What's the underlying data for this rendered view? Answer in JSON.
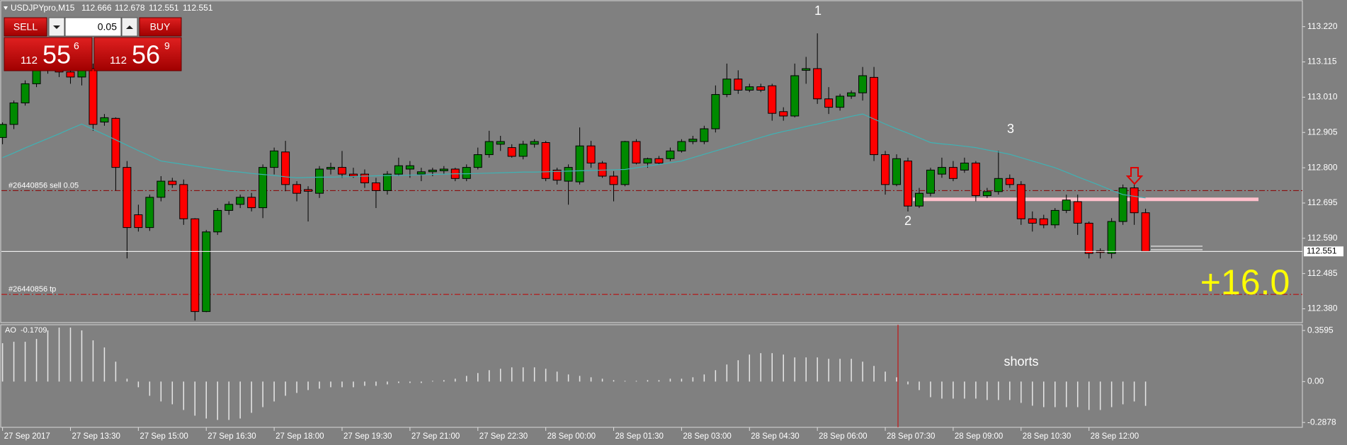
{
  "chart_data": {
    "type": "candlestick",
    "symbol": "USDJPYpro,M15",
    "categories": [
      "27 Sep 2017",
      null,
      null,
      null,
      null,
      null,
      "27 Sep 13:30",
      null,
      null,
      null,
      null,
      null,
      "27 Sep 15:00",
      null,
      null,
      null,
      null,
      null,
      "27 Sep 16:30",
      null,
      null,
      null,
      null,
      null,
      "27 Sep 18:00",
      null,
      null,
      null,
      null,
      null,
      "27 Sep 19:30",
      null,
      null,
      null,
      null,
      null,
      "27 Sep 21:00",
      null,
      null,
      null,
      null,
      null,
      "27 Sep 22:30",
      null,
      null,
      null,
      null,
      null,
      "28 Sep 00:00",
      null,
      null,
      null,
      null,
      null,
      "28 Sep 01:30",
      null,
      null,
      null,
      null,
      null,
      "28 Sep 03:00",
      null,
      null,
      null,
      null,
      null,
      "28 Sep 04:30",
      null,
      null,
      null,
      null,
      null,
      "28 Sep 06:00",
      null,
      null,
      null,
      null,
      null,
      "28 Sep 07:30",
      null,
      null,
      null,
      null,
      null,
      "28 Sep 09:00",
      null,
      null,
      null,
      null,
      null,
      "28 Sep 10:30",
      null,
      null,
      null,
      null,
      null,
      "28 Sep 12:00",
      null,
      null,
      null,
      null,
      null
    ],
    "open": [
      112.89,
      112.929,
      112.993,
      113.05,
      113.095,
      113.12,
      113.085,
      113.07,
      113.095,
      112.936,
      112.947,
      112.801,
      112.66,
      112.622,
      112.712,
      112.76,
      112.75,
      112.648,
      112.372,
      112.609,
      112.673,
      112.691,
      112.712,
      112.681,
      112.801,
      112.847,
      112.75,
      112.735,
      112.724,
      112.796,
      112.801,
      112.781,
      112.781,
      112.755,
      112.732,
      112.781,
      112.796,
      112.781,
      112.788,
      112.791,
      112.796,
      112.768,
      112.801,
      112.839,
      112.87,
      112.86,
      112.834,
      112.87,
      112.875,
      112.793,
      112.76,
      112.758,
      112.865,
      112.814,
      112.775,
      112.75,
      112.878,
      112.814,
      112.827,
      112.827,
      112.85,
      112.878,
      112.878,
      112.916,
      113.018,
      113.064,
      113.031,
      113.041,
      113.044,
      112.967,
      112.954,
      113.09,
      113.095,
      113.005,
      112.98,
      113.013,
      113.023,
      113.069,
      112.839,
      112.75,
      112.82,
      112.686,
      112.724,
      112.781,
      112.801,
      112.793,
      112.814,
      112.717,
      112.729,
      112.768,
      112.75,
      112.648,
      112.648,
      112.63,
      112.673,
      112.699,
      112.635,
      112.553,
      112.545,
      112.64,
      112.74,
      112.666
    ],
    "high": [
      112.935,
      113.0,
      113.06,
      113.11,
      113.15,
      113.14,
      113.11,
      113.1,
      113.11,
      112.96,
      112.95,
      112.82,
      112.69,
      112.72,
      112.775,
      112.77,
      112.765,
      112.65,
      112.615,
      112.68,
      112.7,
      112.72,
      112.725,
      112.81,
      112.86,
      112.88,
      112.76,
      112.745,
      112.805,
      112.815,
      112.85,
      112.8,
      112.795,
      112.77,
      112.79,
      112.83,
      112.82,
      112.8,
      112.8,
      112.805,
      112.8,
      112.81,
      112.86,
      112.91,
      112.895,
      112.87,
      112.88,
      112.885,
      112.88,
      112.8,
      112.81,
      112.92,
      112.88,
      112.82,
      112.79,
      112.88,
      112.885,
      112.83,
      112.835,
      112.86,
      112.885,
      112.895,
      112.925,
      113.045,
      113.11,
      113.09,
      113.05,
      113.05,
      113.05,
      112.98,
      113.11,
      113.13,
      113.2,
      113.04,
      113.02,
      113.03,
      113.1,
      113.1,
      112.85,
      112.84,
      112.83,
      112.74,
      112.8,
      112.83,
      112.82,
      112.83,
      112.82,
      112.74,
      112.85,
      112.78,
      112.76,
      112.67,
      112.66,
      112.68,
      112.72,
      112.72,
      112.64,
      112.56,
      112.65,
      112.75,
      112.75,
      112.678
    ],
    "low": [
      112.87,
      112.915,
      112.985,
      113.04,
      113.08,
      113.07,
      113.05,
      113.045,
      112.91,
      112.925,
      112.732,
      112.53,
      112.61,
      112.612,
      112.7,
      112.74,
      112.63,
      112.345,
      112.37,
      112.6,
      112.66,
      112.68,
      112.67,
      112.65,
      112.78,
      112.73,
      112.7,
      112.64,
      112.71,
      112.78,
      112.77,
      112.77,
      112.74,
      112.68,
      112.72,
      112.775,
      112.77,
      112.76,
      112.775,
      112.78,
      112.76,
      112.76,
      112.795,
      112.83,
      112.85,
      112.83,
      112.825,
      112.86,
      112.76,
      112.75,
      112.69,
      112.75,
      112.8,
      112.77,
      112.7,
      112.745,
      112.81,
      112.8,
      112.81,
      112.82,
      112.845,
      112.87,
      112.87,
      112.905,
      113.01,
      113.02,
      113.025,
      113.025,
      112.94,
      112.94,
      112.95,
      113.05,
      112.99,
      112.96,
      112.97,
      113.005,
      113.0,
      112.82,
      112.72,
      112.745,
      112.67,
      112.68,
      112.715,
      112.77,
      112.76,
      112.785,
      112.7,
      112.71,
      112.72,
      112.74,
      112.63,
      112.61,
      112.62,
      112.62,
      112.665,
      112.6,
      112.53,
      112.53,
      112.53,
      112.63,
      112.63,
      112.551
    ],
    "close": [
      112.929,
      112.993,
      113.05,
      113.095,
      113.12,
      113.085,
      113.07,
      113.095,
      112.929,
      112.949,
      112.801,
      112.622,
      112.622,
      112.712,
      112.76,
      112.75,
      112.648,
      112.372,
      112.609,
      112.673,
      112.691,
      112.712,
      112.681,
      112.801,
      112.85,
      112.75,
      112.724,
      112.73,
      112.796,
      112.801,
      112.781,
      112.775,
      112.755,
      112.732,
      112.781,
      112.806,
      112.806,
      112.788,
      112.793,
      112.796,
      112.768,
      112.801,
      112.839,
      112.878,
      112.878,
      112.834,
      112.87,
      112.878,
      112.768,
      112.763,
      112.801,
      112.865,
      112.814,
      112.775,
      112.75,
      112.878,
      112.814,
      112.827,
      112.814,
      112.85,
      112.878,
      112.885,
      112.916,
      113.018,
      113.064,
      113.031,
      113.041,
      113.031,
      112.962,
      112.954,
      113.074,
      113.095,
      113.005,
      112.98,
      113.013,
      113.023,
      113.074,
      112.839,
      112.75,
      112.827,
      112.686,
      112.724,
      112.793,
      112.801,
      112.768,
      112.814,
      112.717,
      112.729,
      112.768,
      112.75,
      112.648,
      112.635,
      112.63,
      112.673,
      112.704,
      112.635,
      112.545,
      112.548,
      112.64,
      112.74,
      112.666,
      112.551
    ],
    "ma": [
      112.83,
      112.844,
      112.859,
      112.873,
      112.887,
      112.901,
      112.916,
      112.93,
      112.914,
      112.899,
      112.883,
      112.867,
      112.851,
      112.836,
      112.82,
      112.815,
      112.81,
      112.805,
      112.8,
      112.795,
      112.79,
      112.787,
      112.783,
      112.78,
      112.777,
      112.773,
      112.77,
      112.771,
      112.772,
      112.772,
      112.773,
      112.774,
      112.775,
      112.776,
      112.777,
      112.777,
      112.778,
      112.779,
      112.78,
      112.781,
      112.782,
      112.782,
      112.783,
      112.784,
      112.785,
      112.786,
      112.787,
      112.787,
      112.788,
      112.789,
      112.79,
      112.791,
      112.792,
      112.793,
      112.794,
      112.795,
      112.8,
      112.805,
      112.81,
      112.815,
      112.82,
      112.83,
      112.84,
      112.85,
      112.86,
      112.87,
      112.88,
      112.89,
      112.9,
      112.908,
      112.915,
      112.923,
      112.93,
      112.938,
      112.945,
      112.953,
      112.96,
      112.945,
      112.93,
      112.916,
      112.903,
      112.889,
      112.875,
      112.871,
      112.868,
      112.864,
      112.86,
      112.853,
      112.847,
      112.84,
      112.83,
      112.82,
      112.81,
      112.8,
      112.787,
      112.773,
      112.76,
      112.747,
      112.733,
      112.72,
      112.715,
      112.71
    ],
    "up_color": "#008a00",
    "down_color": "#ff0000",
    "ma_color": "#3fb2b4",
    "ylim": [
      112.339,
      113.293
    ],
    "yticks": [
      {
        "value": 113.22,
        "label": "113.220"
      },
      113.115,
      {
        "value": 113.01,
        "label": "113.010"
      },
      112.905,
      {
        "value": 112.8,
        "label": "112.800"
      },
      112.695,
      {
        "value": 112.59,
        "label": "112.590"
      },
      112.485,
      {
        "value": 112.38,
        "label": "112.380"
      }
    ],
    "order_label": "#26440856 sell 0.05",
    "order_price": 112.732,
    "tp_label": "#26440856 tp",
    "tp_price": 112.423,
    "level_price": 112.706,
    "peak_labels": [
      "1",
      "2",
      "3"
    ],
    "profit": "+16.0",
    "note": "shorts",
    "ao_name": "AO",
    "ao": [
      0.27,
      0.28,
      0.28,
      0.3,
      0.36,
      0.38,
      0.38,
      0.36,
      0.29,
      0.24,
      0.14,
      0.02,
      -0.04,
      -0.1,
      -0.14,
      -0.16,
      -0.2,
      -0.24,
      -0.26,
      -0.27,
      -0.27,
      -0.26,
      -0.22,
      -0.18,
      -0.14,
      -0.1,
      -0.08,
      -0.06,
      -0.05,
      -0.04,
      -0.04,
      -0.04,
      -0.03,
      -0.03,
      -0.02,
      -0.01,
      -0.01,
      -0.01,
      0.005,
      0.01,
      0.02,
      0.04,
      0.06,
      0.08,
      0.09,
      0.1,
      0.1,
      0.1,
      0.09,
      0.07,
      0.05,
      0.04,
      0.03,
      0.02,
      0.01,
      0.005,
      0.005,
      0.01,
      0.01,
      0.02,
      0.02,
      0.03,
      0.05,
      0.08,
      0.12,
      0.15,
      0.19,
      0.2,
      0.2,
      0.19,
      0.17,
      0.17,
      0.17,
      0.16,
      0.16,
      0.16,
      0.14,
      0.11,
      0.07,
      0.03,
      -0.02,
      -0.06,
      -0.11,
      -0.12,
      -0.12,
      -0.12,
      -0.12,
      -0.13,
      -0.13,
      -0.13,
      -0.15,
      -0.17,
      -0.18,
      -0.18,
      -0.18,
      -0.18,
      -0.2,
      -0.2,
      -0.18,
      -0.16,
      -0.14,
      -0.1709
    ],
    "ao_ylim": [
      -0.317,
      0.395
    ],
    "ao_yticks": [
      0.3595,
      {
        "value": 0,
        "label": "0.00"
      },
      -0.2878
    ]
  },
  "trade_panel": {
    "sell": "SELL",
    "buy": "BUY",
    "lot": "0.05",
    "sell_price": [
      "112",
      "55",
      "6"
    ],
    "buy_price": [
      "112",
      "56",
      "9"
    ]
  }
}
